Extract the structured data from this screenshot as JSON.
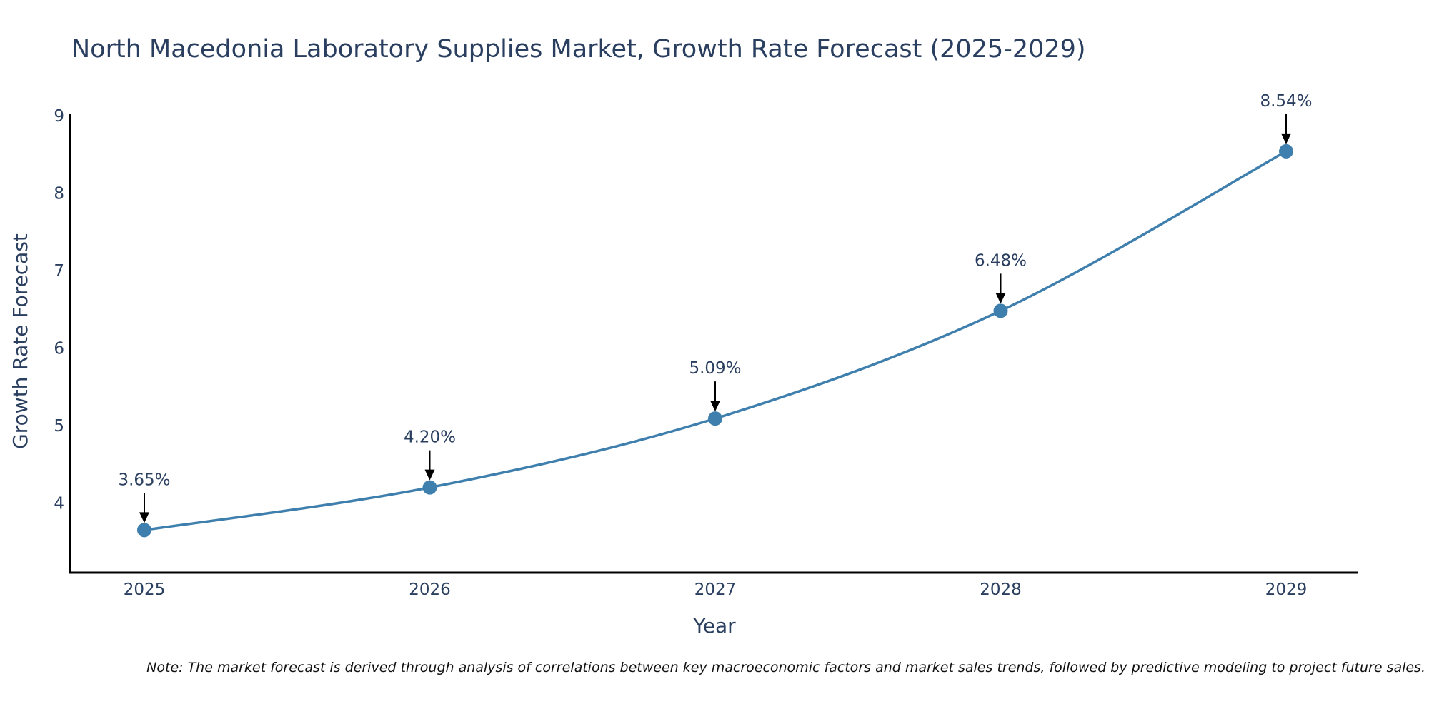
{
  "chart_data": {
    "type": "line",
    "title": "North Macedonia Laboratory Supplies Market, Growth Rate Forecast (2025-2029)",
    "xlabel": "Year",
    "ylabel": "Growth Rate Forecast",
    "categories": [
      "2025",
      "2026",
      "2027",
      "2028",
      "2029"
    ],
    "series": [
      {
        "name": "Growth Rate Forecast",
        "values": [
          3.65,
          4.2,
          5.09,
          6.48,
          8.54
        ],
        "labels": [
          "3.65%",
          "4.20%",
          "5.09%",
          "6.48%",
          "8.54%"
        ]
      }
    ],
    "ylim": [
      3.1,
      9.0
    ],
    "yticks": [
      4,
      5,
      6,
      7,
      8,
      9
    ],
    "grid": false,
    "line_color": "#3f7fad",
    "marker_color": "#3f7fad",
    "arrow_color": "#000000",
    "note": "Note: The market forecast is derived through analysis of correlations between key macroeconomic factors and market sales trends, followed by predictive modeling to project future sales."
  }
}
